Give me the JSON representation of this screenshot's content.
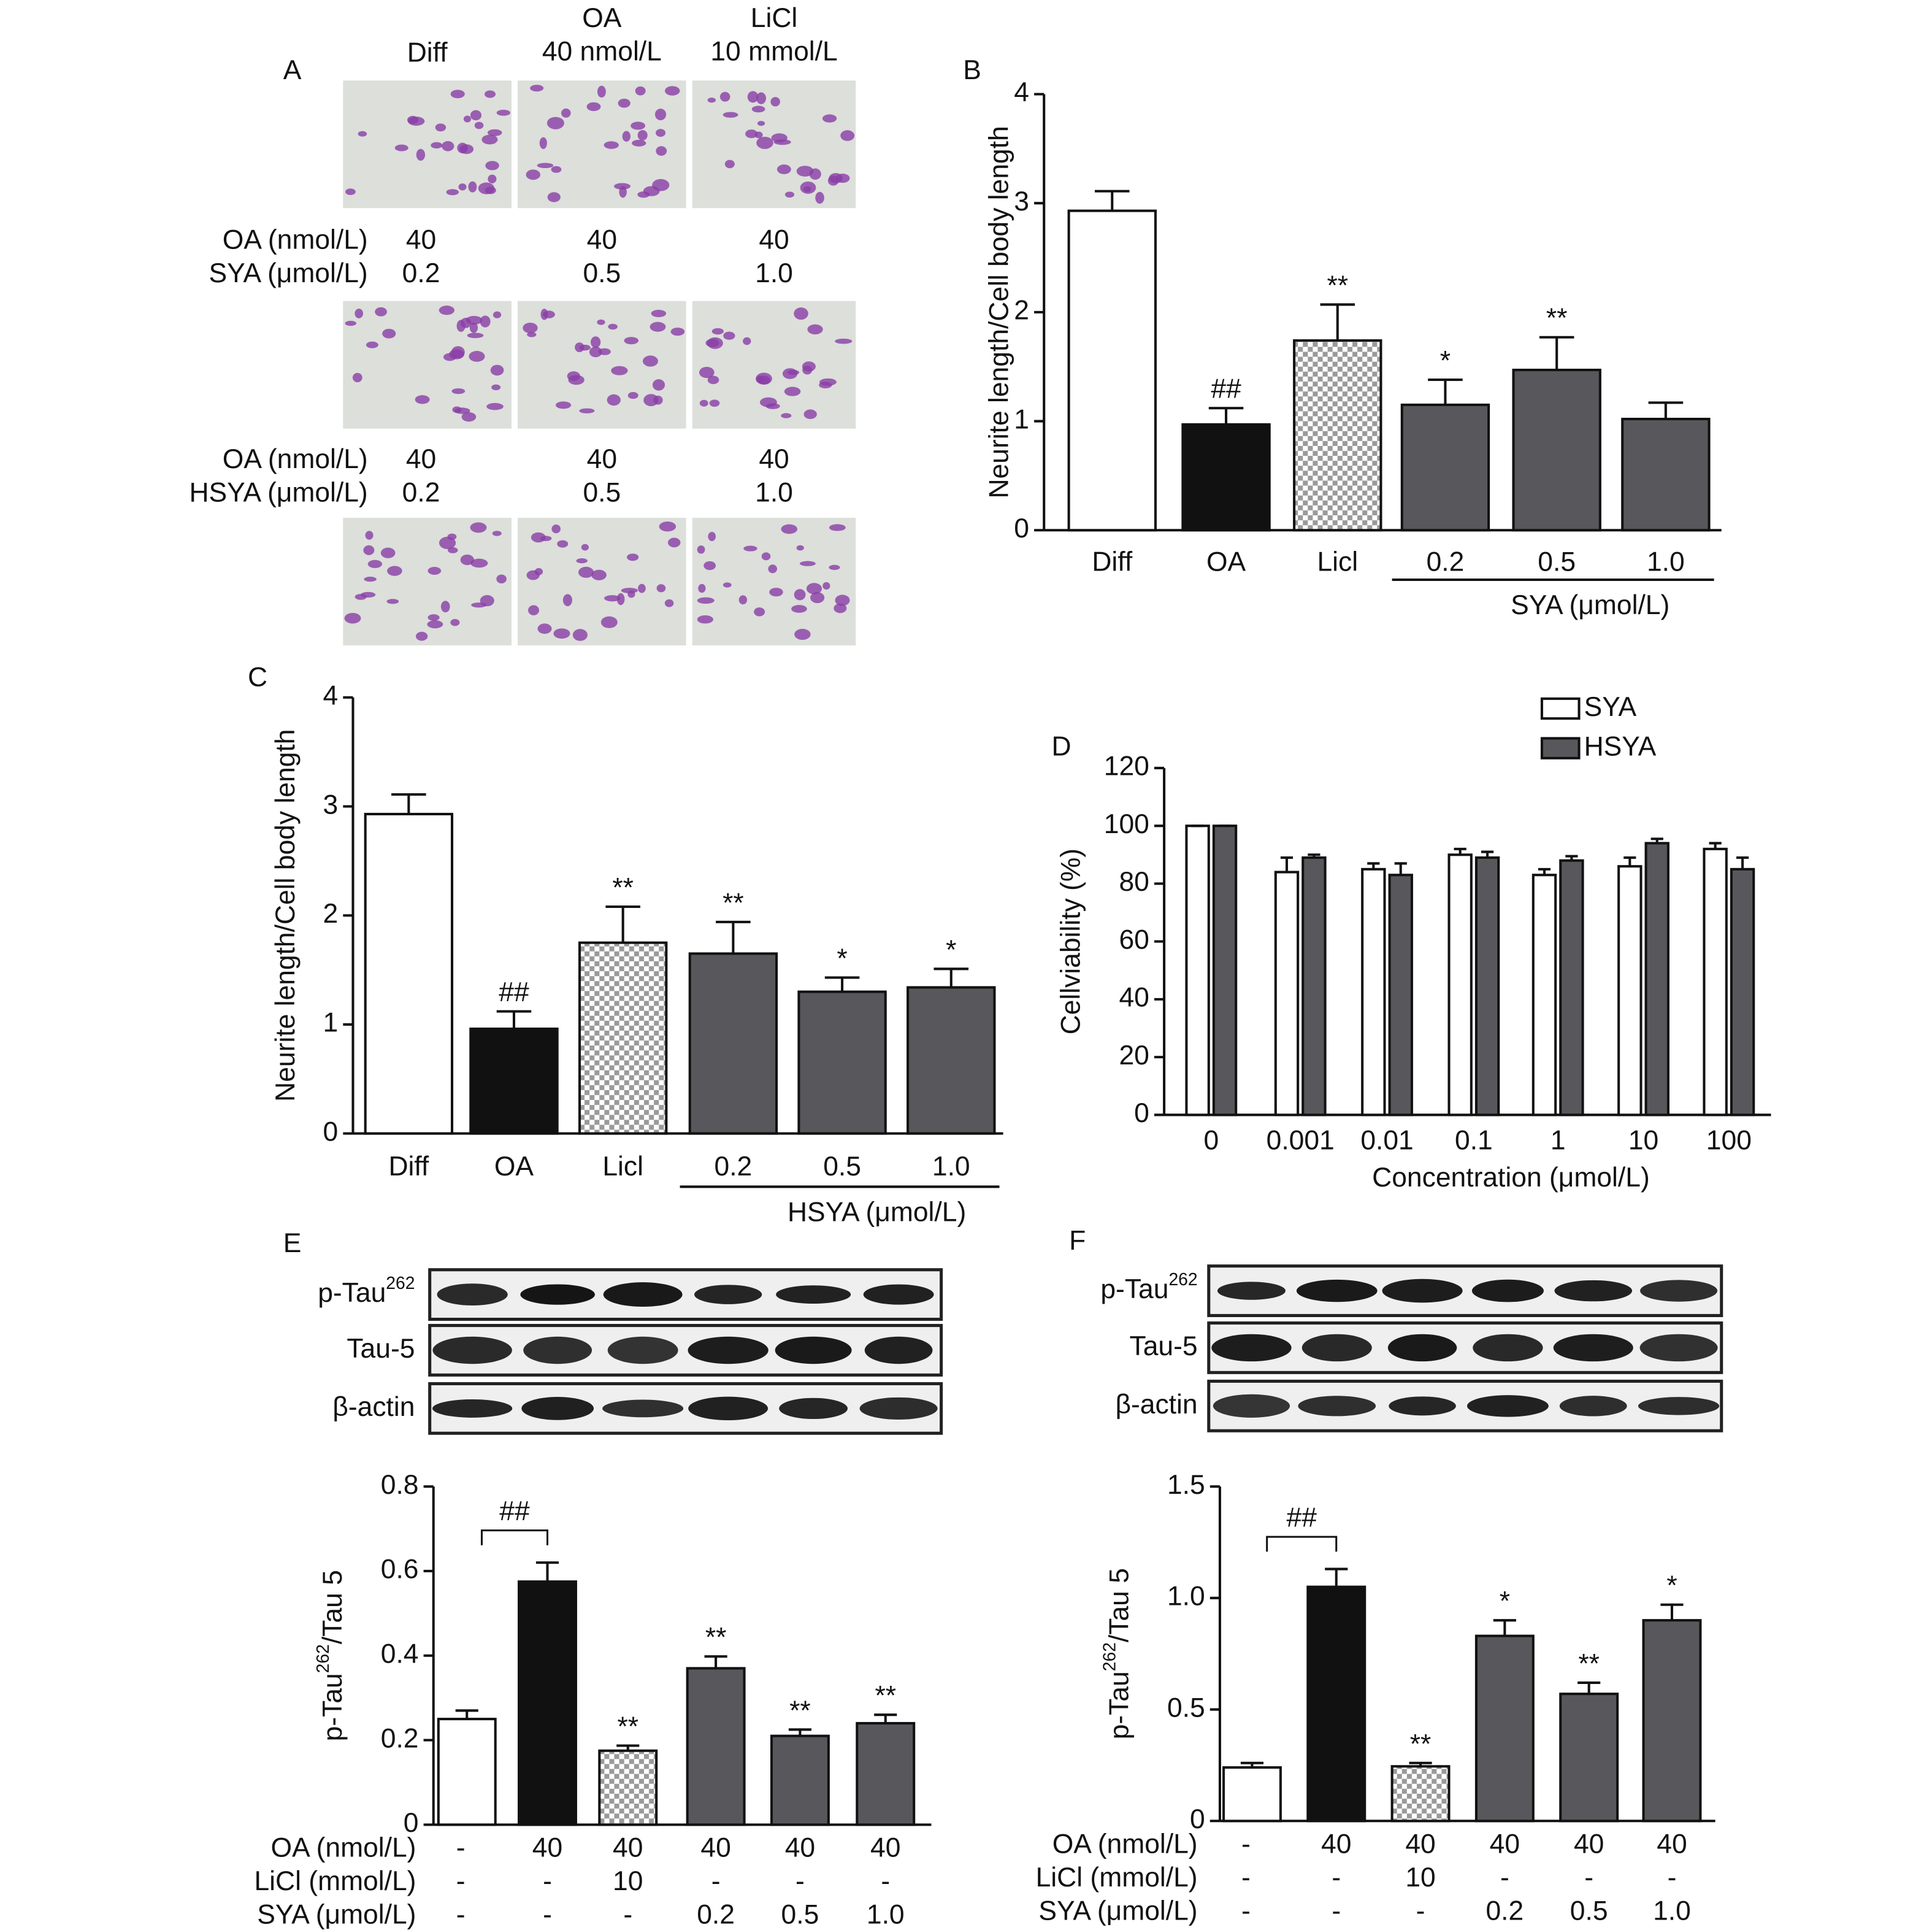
{
  "panel_a": {
    "label": "A",
    "headers": [
      [
        "Diff"
      ],
      [
        "OA",
        "40 nmol/L"
      ],
      [
        "LiCl",
        "10 mmol/L"
      ]
    ],
    "rows": [
      {
        "names": [
          "OA (nmol/L)",
          "SYA (μmol/L)"
        ],
        "cells": [
          [
            "40",
            "40",
            "40"
          ],
          [
            "0.2",
            "0.5",
            "1.0"
          ]
        ]
      },
      {
        "names": [
          "OA (nmol/L)",
          "HSYA (μmol/L)"
        ],
        "cells": [
          [
            "40",
            "40",
            "40"
          ],
          [
            "0.2",
            "0.5",
            "1.0"
          ]
        ]
      }
    ]
  },
  "chart_data": [
    {
      "type": "bar",
      "panel": "B",
      "ylabel": "Neurite length/Cell body length",
      "categories": [
        "Diff",
        "OA",
        "Licl",
        "0.2",
        "0.5",
        "1.0"
      ],
      "values": [
        2.93,
        0.97,
        1.74,
        1.15,
        1.47,
        1.02
      ],
      "errors": [
        0.18,
        0.15,
        0.33,
        0.23,
        0.3,
        0.15
      ],
      "annotations": [
        null,
        "##",
        "**",
        "*",
        "**",
        null
      ],
      "colors": [
        "#ffffff",
        "#111111",
        "checker",
        "#58585c",
        "#58585c",
        "#58585c"
      ],
      "group_label": "SYA (μmol/L)",
      "ylim": [
        0,
        4
      ],
      "yticks": [
        0,
        1,
        2,
        3,
        4
      ]
    },
    {
      "type": "bar",
      "panel": "C",
      "ylabel": "Neurite length/Cell body length",
      "categories": [
        "Diff",
        "OA",
        "Licl",
        "0.2",
        "0.5",
        "1.0"
      ],
      "values": [
        2.93,
        0.96,
        1.75,
        1.65,
        1.3,
        1.34
      ],
      "errors": [
        0.18,
        0.16,
        0.33,
        0.29,
        0.13,
        0.17
      ],
      "annotations": [
        null,
        "##",
        "**",
        "**",
        "*",
        "*"
      ],
      "colors": [
        "#ffffff",
        "#111111",
        "checker",
        "#58585c",
        "#58585c",
        "#58585c"
      ],
      "group_label": "HSYA (μmol/L)",
      "ylim": [
        0,
        4
      ],
      "yticks": [
        0,
        1,
        2,
        3,
        4
      ]
    },
    {
      "type": "grouped_bar",
      "panel": "D",
      "ylabel": "Cellviability (%)",
      "xlabel": "Concentration (μmol/L)",
      "categories": [
        "0",
        "0.001",
        "0.01",
        "0.1",
        "1",
        "10",
        "100"
      ],
      "series": [
        {
          "name": "SYA",
          "color": "#ffffff",
          "values": [
            100,
            84,
            85,
            90,
            83,
            86,
            92
          ],
          "errors": [
            0,
            5,
            2,
            2,
            2,
            3,
            2
          ]
        },
        {
          "name": "HSYA",
          "color": "#58585c",
          "values": [
            100,
            89,
            83,
            89,
            88,
            94,
            85
          ],
          "errors": [
            0,
            1,
            4,
            2,
            1.5,
            1.5,
            4
          ]
        }
      ],
      "legend": "top-right",
      "ylim": [
        0,
        120
      ],
      "yticks": [
        0,
        20,
        40,
        60,
        80,
        100,
        120
      ]
    },
    {
      "type": "bar",
      "panel": "E",
      "ylabel_parts": [
        "p-Tau",
        "262",
        "/Tau 5"
      ],
      "blot_labels": [
        [
          "p-Tau",
          "262"
        ],
        [
          "Tau-5"
        ],
        [
          "β-actin"
        ]
      ],
      "values": [
        0.25,
        0.575,
        0.175,
        0.37,
        0.21,
        0.24
      ],
      "errors": [
        0.02,
        0.045,
        0.012,
        0.028,
        0.015,
        0.02
      ],
      "annotations": [
        null,
        "##",
        "**",
        "**",
        "**",
        "**"
      ],
      "bracket": true,
      "colors": [
        "#ffffff",
        "#111111",
        "checker",
        "#58585c",
        "#58585c",
        "#58585c"
      ],
      "conditions": [
        {
          "name": "OA (nmol/L)",
          "cells": [
            "-",
            "40",
            "40",
            "40",
            "40",
            "40"
          ]
        },
        {
          "name": "LiCl (mmol/L)",
          "cells": [
            "-",
            "-",
            "10",
            "-",
            "-",
            "-"
          ]
        },
        {
          "name": "SYA (μmol/L)",
          "cells": [
            "-",
            "-",
            "-",
            "0.2",
            "0.5",
            "1.0"
          ]
        }
      ],
      "ylim": [
        0,
        0.8
      ],
      "yticks": [
        0,
        0.2,
        0.4,
        0.6,
        0.8
      ]
    },
    {
      "type": "bar",
      "panel": "F",
      "ylabel_parts": [
        "p-Tau",
        "262",
        "/Tau 5"
      ],
      "blot_labels": [
        [
          "p-Tau",
          "262"
        ],
        [
          "Tau-5"
        ],
        [
          "β-actin"
        ]
      ],
      "values": [
        0.24,
        1.05,
        0.245,
        0.83,
        0.57,
        0.9
      ],
      "errors": [
        0.02,
        0.08,
        0.015,
        0.07,
        0.05,
        0.07
      ],
      "annotations": [
        null,
        "##",
        "**",
        "*",
        "**",
        "*"
      ],
      "bracket": true,
      "colors": [
        "#ffffff",
        "#111111",
        "checker",
        "#58585c",
        "#58585c",
        "#58585c"
      ],
      "conditions": [
        {
          "name": "OA (nmol/L)",
          "cells": [
            "-",
            "40",
            "40",
            "40",
            "40",
            "40"
          ]
        },
        {
          "name": "LiCl (mmol/L)",
          "cells": [
            "-",
            "-",
            "10",
            "-",
            "-",
            "-"
          ]
        },
        {
          "name": "SYA (μmol/L)",
          "cells": [
            "-",
            "-",
            "-",
            "0.2",
            "0.5",
            "1.0"
          ]
        }
      ],
      "ylim": [
        0,
        1.5
      ],
      "yticks": [
        0,
        0.5,
        {
          "value": 1,
          "label": "1.0"
        },
        1.5
      ]
    }
  ]
}
